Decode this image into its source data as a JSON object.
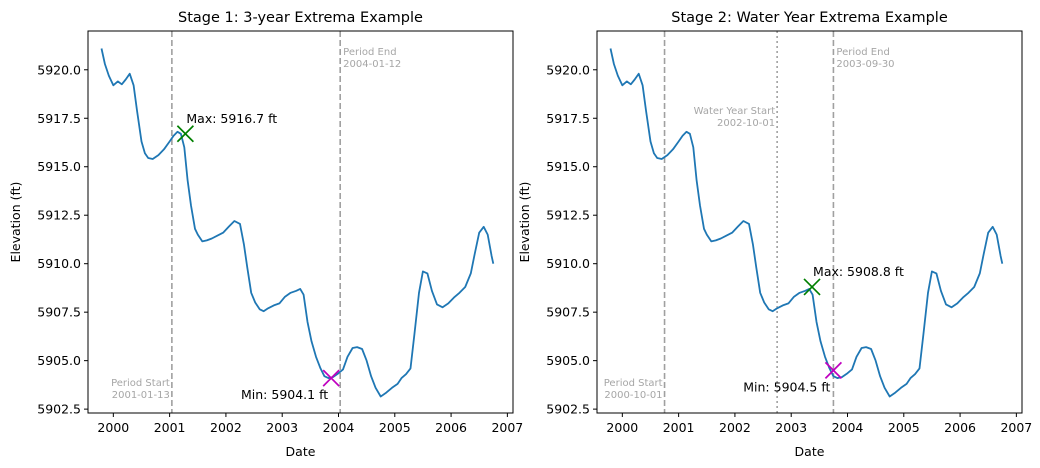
{
  "chart_data": [
    {
      "type": "line",
      "title": "Stage 1: 3-year Extrema Example",
      "xlabel": "Date",
      "ylabel": "Elevation (ft)",
      "xlim": [
        1999.55,
        2007.1
      ],
      "ylim": [
        5902.3,
        5922.0
      ],
      "x_ticks": [
        "2000",
        "2001",
        "2002",
        "2003",
        "2004",
        "2005",
        "2006",
        "2007"
      ],
      "y_ticks": [
        "5902.5",
        "5905.0",
        "5907.5",
        "5910.0",
        "5912.5",
        "5915.0",
        "5917.5",
        "5920.0"
      ],
      "series": [
        {
          "color": "#1f77b4",
          "x": [
            1999.79,
            1999.85,
            1999.92,
            2000.0,
            2000.08,
            2000.15,
            2000.22,
            2000.29,
            2000.36,
            2000.42,
            2000.5,
            2000.56,
            2000.62,
            2000.7,
            2000.8,
            2000.9,
            2001.0,
            2001.07,
            2001.14,
            2001.2,
            2001.26,
            2001.32,
            2001.38,
            2001.45,
            2001.5,
            2001.58,
            2001.66,
            2001.75,
            2001.85,
            2001.95,
            2002.05,
            2002.15,
            2002.25,
            2002.32,
            2002.38,
            2002.45,
            2002.52,
            2002.6,
            2002.67,
            2002.75,
            2002.85,
            2002.95,
            2003.05,
            2003.15,
            2003.25,
            2003.32,
            2003.38,
            2003.45,
            2003.52,
            2003.6,
            2003.68,
            2003.75,
            2003.82,
            2003.9,
            2004.0,
            2004.08,
            2004.16,
            2004.25,
            2004.33,
            2004.42,
            2004.5,
            2004.58,
            2004.66,
            2004.75,
            2004.85,
            2004.95,
            2005.05,
            2005.12,
            2005.2,
            2005.28,
            2005.35,
            2005.43,
            2005.5,
            2005.58,
            2005.66,
            2005.75,
            2005.85,
            2005.95,
            2006.05,
            2006.15,
            2006.25,
            2006.35,
            2006.42,
            2006.5,
            2006.58,
            2006.65,
            2006.72,
            2006.75
          ],
          "y": [
            5921.1,
            5920.3,
            5919.7,
            5919.2,
            5919.4,
            5919.25,
            5919.5,
            5919.8,
            5919.2,
            5917.9,
            5916.3,
            5915.7,
            5915.45,
            5915.4,
            5915.6,
            5915.9,
            5916.3,
            5916.6,
            5916.8,
            5916.7,
            5916.0,
            5914.3,
            5913.0,
            5911.8,
            5911.5,
            5911.15,
            5911.2,
            5911.3,
            5911.45,
            5911.6,
            5911.9,
            5912.2,
            5912.05,
            5911.0,
            5909.8,
            5908.5,
            5908.0,
            5907.65,
            5907.55,
            5907.7,
            5907.85,
            5907.95,
            5908.3,
            5908.5,
            5908.6,
            5908.7,
            5908.4,
            5907.0,
            5906.0,
            5905.2,
            5904.6,
            5904.2,
            5904.1,
            5904.15,
            5904.35,
            5904.55,
            5905.2,
            5905.65,
            5905.7,
            5905.6,
            5905.0,
            5904.2,
            5903.6,
            5903.15,
            5903.35,
            5903.6,
            5903.8,
            5904.1,
            5904.3,
            5904.6,
            5906.4,
            5908.5,
            5909.6,
            5909.5,
            5908.6,
            5907.9,
            5907.75,
            5907.95,
            5908.25,
            5908.5,
            5908.8,
            5909.5,
            5910.5,
            5911.6,
            5911.9,
            5911.5,
            5910.4,
            5910.0
          ]
        }
      ],
      "vlines": [
        {
          "x": 2001.04,
          "style": "dashed",
          "color": "#a0a0a0",
          "label": [
            "Period Start",
            "2001-01-13"
          ],
          "label_pos": "bottom-left"
        },
        {
          "x": 2004.03,
          "style": "dashed",
          "color": "#a0a0a0",
          "label": [
            "Period End",
            "2004-01-12"
          ],
          "label_pos": "top-right"
        }
      ],
      "markers": [
        {
          "x": 2001.28,
          "y": 5916.7,
          "color": "#007f00",
          "label": "Max: 5916.7 ft",
          "label_pos": "above-right"
        },
        {
          "x": 2003.87,
          "y": 5904.1,
          "color": "#bf00bf",
          "label": "Min: 5904.1 ft",
          "label_pos": "below-left"
        }
      ]
    },
    {
      "type": "line",
      "title": "Stage 2: Water Year Extrema Example",
      "xlabel": "Date",
      "ylabel": "Elevation (ft)",
      "xlim": [
        1999.55,
        2007.1
      ],
      "ylim": [
        5902.3,
        5922.0
      ],
      "x_ticks": [
        "2000",
        "2001",
        "2002",
        "2003",
        "2004",
        "2005",
        "2006",
        "2007"
      ],
      "y_ticks": [
        "5902.5",
        "5905.0",
        "5907.5",
        "5910.0",
        "5912.5",
        "5915.0",
        "5917.5",
        "5920.0"
      ],
      "series": [
        {
          "color": "#1f77b4",
          "x": [
            1999.79,
            1999.85,
            1999.92,
            2000.0,
            2000.08,
            2000.15,
            2000.22,
            2000.29,
            2000.36,
            2000.42,
            2000.5,
            2000.56,
            2000.62,
            2000.7,
            2000.8,
            2000.9,
            2001.0,
            2001.07,
            2001.14,
            2001.2,
            2001.26,
            2001.32,
            2001.38,
            2001.45,
            2001.5,
            2001.58,
            2001.66,
            2001.75,
            2001.85,
            2001.95,
            2002.05,
            2002.15,
            2002.25,
            2002.32,
            2002.38,
            2002.45,
            2002.52,
            2002.6,
            2002.67,
            2002.75,
            2002.85,
            2002.95,
            2003.05,
            2003.15,
            2003.25,
            2003.32,
            2003.38,
            2003.45,
            2003.52,
            2003.6,
            2003.68,
            2003.75,
            2003.82,
            2003.9,
            2004.0,
            2004.08,
            2004.16,
            2004.25,
            2004.33,
            2004.42,
            2004.5,
            2004.58,
            2004.66,
            2004.75,
            2004.85,
            2004.95,
            2005.05,
            2005.12,
            2005.2,
            2005.28,
            2005.35,
            2005.43,
            2005.5,
            2005.58,
            2005.66,
            2005.75,
            2005.85,
            2005.95,
            2006.05,
            2006.15,
            2006.25,
            2006.35,
            2006.42,
            2006.5,
            2006.58,
            2006.65,
            2006.72,
            2006.75
          ],
          "y": [
            5921.1,
            5920.3,
            5919.7,
            5919.2,
            5919.4,
            5919.25,
            5919.5,
            5919.8,
            5919.2,
            5917.9,
            5916.3,
            5915.7,
            5915.45,
            5915.4,
            5915.6,
            5915.9,
            5916.3,
            5916.6,
            5916.8,
            5916.7,
            5916.0,
            5914.3,
            5913.0,
            5911.8,
            5911.5,
            5911.15,
            5911.2,
            5911.3,
            5911.45,
            5911.6,
            5911.9,
            5912.2,
            5912.05,
            5911.0,
            5909.8,
            5908.5,
            5908.0,
            5907.65,
            5907.55,
            5907.7,
            5907.85,
            5907.95,
            5908.3,
            5908.5,
            5908.6,
            5908.7,
            5908.4,
            5907.0,
            5906.0,
            5905.2,
            5904.6,
            5904.2,
            5904.1,
            5904.15,
            5904.35,
            5904.55,
            5905.2,
            5905.65,
            5905.7,
            5905.6,
            5905.0,
            5904.2,
            5903.6,
            5903.15,
            5903.35,
            5903.6,
            5903.8,
            5904.1,
            5904.3,
            5904.6,
            5906.4,
            5908.5,
            5909.6,
            5909.5,
            5908.6,
            5907.9,
            5907.75,
            5907.95,
            5908.25,
            5908.5,
            5908.8,
            5909.5,
            5910.5,
            5911.6,
            5911.9,
            5911.5,
            5910.4,
            5910.0
          ]
        }
      ],
      "vlines": [
        {
          "x": 2000.75,
          "style": "dashed",
          "color": "#a0a0a0",
          "label": [
            "Period Start",
            "2000-10-01"
          ],
          "label_pos": "bottom-left"
        },
        {
          "x": 2002.75,
          "style": "dotted",
          "color": "#a0a0a0",
          "label": [
            "Water Year Start",
            "2002-10-01"
          ],
          "label_pos": "upper-left"
        },
        {
          "x": 2003.75,
          "style": "dashed",
          "color": "#a0a0a0",
          "label": [
            "Period End",
            "2003-09-30"
          ],
          "label_pos": "top-right"
        }
      ],
      "markers": [
        {
          "x": 2003.37,
          "y": 5908.8,
          "color": "#007f00",
          "label": "Max: 5908.8 ft",
          "label_pos": "above-right"
        },
        {
          "x": 2003.75,
          "y": 5904.5,
          "color": "#bf00bf",
          "label": "Min: 5904.5 ft",
          "label_pos": "below-left"
        }
      ]
    }
  ]
}
